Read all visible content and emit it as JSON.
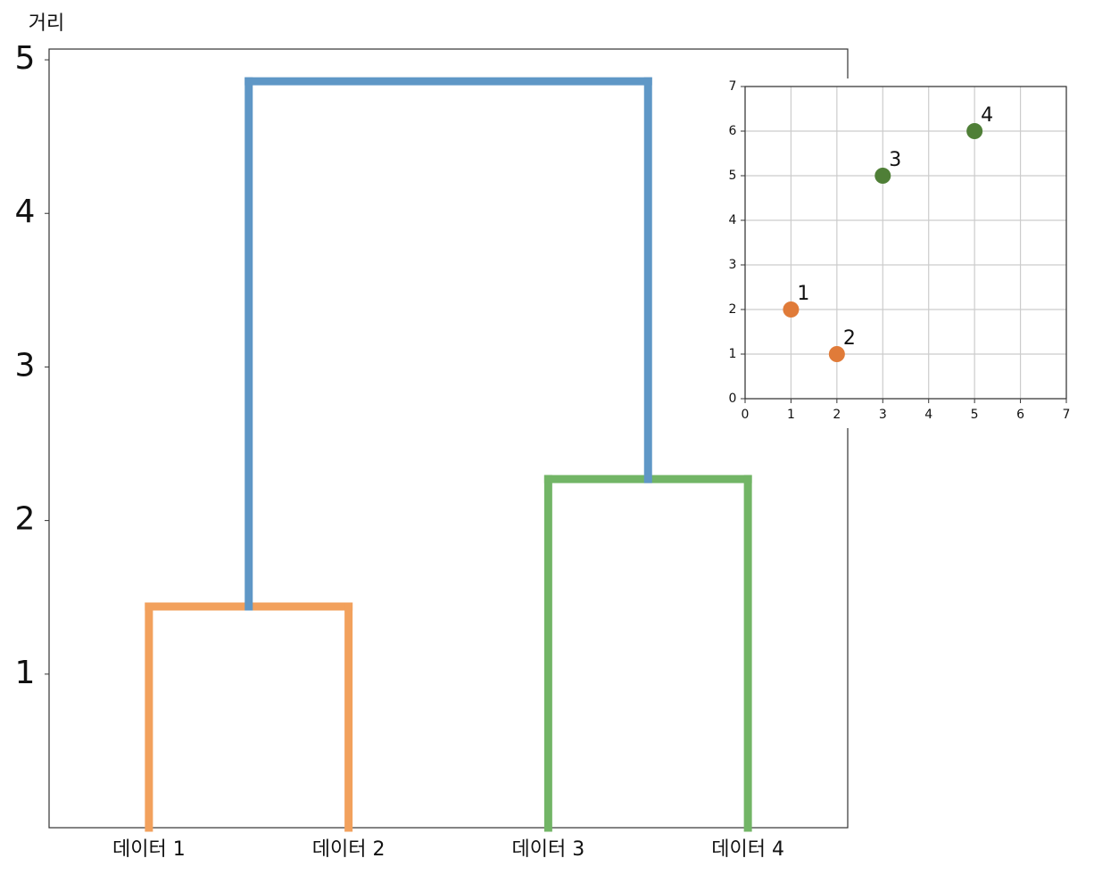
{
  "chart_data": [
    {
      "type": "dendrogram",
      "y_label": "거리",
      "categories": [
        "데이터 1",
        "데이터 2",
        "데이터 3",
        "데이터 4"
      ],
      "merges": [
        {
          "left": 0,
          "right": 1,
          "height": 1.44,
          "color": "#f2a15d"
        },
        {
          "left": 2,
          "right": 3,
          "height": 2.27,
          "color": "#72b566"
        },
        {
          "left": 4,
          "right": 5,
          "height": 4.86,
          "color": "#5f97c6"
        }
      ],
      "ylim": [
        0,
        5.07
      ],
      "yticks": [
        1,
        2,
        3,
        4,
        5
      ]
    },
    {
      "type": "scatter",
      "x": [
        1,
        2,
        3,
        5
      ],
      "values": [
        2,
        1,
        5,
        6
      ],
      "labels": [
        "1",
        "2",
        "3",
        "4"
      ],
      "colors": [
        "#e07b39",
        "#e07b39",
        "#4f7f37",
        "#4f7f37"
      ],
      "xlim": [
        0,
        7
      ],
      "ylim": [
        0,
        7
      ],
      "xticks": [
        0,
        1,
        2,
        3,
        4,
        5,
        6,
        7
      ],
      "yticks": [
        0,
        1,
        2,
        3,
        4,
        5,
        6,
        7
      ],
      "grid": true
    }
  ]
}
